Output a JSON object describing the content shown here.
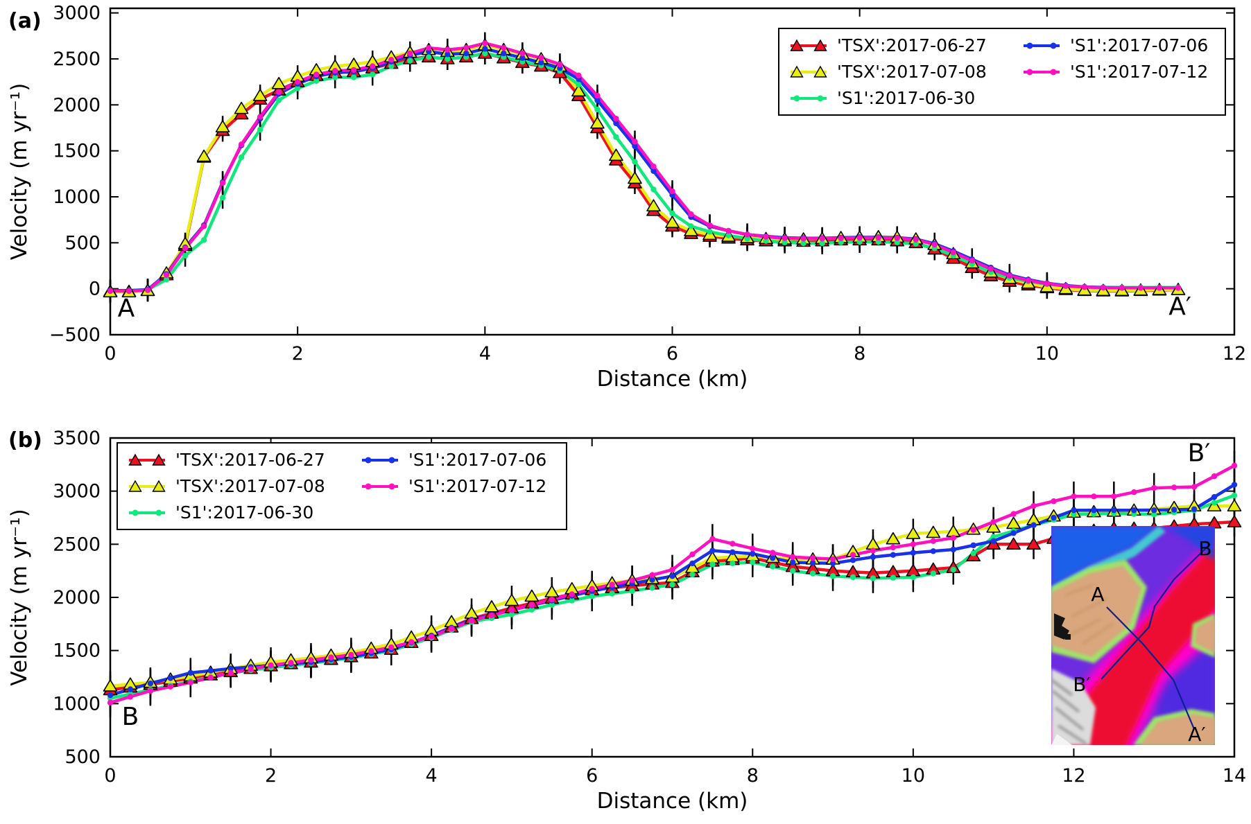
{
  "figure": {
    "panel_a_label": "(a)",
    "panel_b_label": "(b)"
  },
  "chart_data": [
    {
      "type": "line",
      "panel": "a",
      "panel_label": "(a)",
      "xlabel": "Distance (km)",
      "ylabel": "Velocity (m yr⁻¹)",
      "xlim": [
        0,
        12
      ],
      "ylim": [
        -500,
        3000
      ],
      "x_ticks": [
        0,
        2,
        4,
        6,
        8,
        10,
        12
      ],
      "y_tick_values": [
        3000,
        2500,
        2000,
        1500,
        1000,
        500,
        0,
        -500
      ],
      "y_tick_labels": [
        "3000",
        "2500",
        "2000",
        "1500",
        "1000",
        "500",
        "0",
        "−500"
      ],
      "x_start": 0,
      "x_step": 0.2,
      "grid": false,
      "legend_position": "upper right",
      "legend_columns": [
        [
          0,
          1,
          2
        ],
        [
          3,
          4
        ]
      ],
      "error_bars": {
        "every": 2,
        "size": 120,
        "from": 0,
        "to": 10.2
      },
      "annotations": [
        {
          "text": "A",
          "x": 0.17,
          "y": -300
        },
        {
          "text": "A′",
          "x": 11.42,
          "y": -280
        }
      ],
      "series": [
        {
          "name": "'TSX':2017-06-27",
          "satellite": "TSX",
          "date": "2017-06-27",
          "color": "#ee1122",
          "marker": "triangle",
          "values": [
            -30,
            -30,
            -20,
            150,
            470,
            1430,
            1720,
            1900,
            2060,
            2160,
            2250,
            2320,
            2350,
            2360,
            2400,
            2450,
            2500,
            2520,
            2500,
            2520,
            2560,
            2510,
            2460,
            2420,
            2350,
            2100,
            1750,
            1400,
            1150,
            850,
            680,
            600,
            570,
            550,
            530,
            520,
            520,
            515,
            520,
            530,
            530,
            530,
            520,
            500,
            430,
            330,
            230,
            140,
            80,
            40,
            10,
            -10,
            -20,
            -25,
            -25,
            -20,
            -15,
            -10
          ]
        },
        {
          "name": "'TSX':2017-07-08",
          "satellite": "TSX",
          "date": "2017-07-08",
          "color": "#e8ee12",
          "marker": "triangle",
          "values": [
            -35,
            -35,
            -20,
            170,
            490,
            1440,
            1760,
            1960,
            2100,
            2230,
            2310,
            2380,
            2420,
            2440,
            2470,
            2520,
            2570,
            2600,
            2580,
            2600,
            2650,
            2600,
            2550,
            2500,
            2420,
            2150,
            1800,
            1450,
            1200,
            900,
            720,
            630,
            590,
            570,
            555,
            545,
            540,
            540,
            545,
            555,
            560,
            565,
            560,
            540,
            480,
            380,
            280,
            180,
            110,
            60,
            20,
            0,
            -15,
            -20,
            -20,
            -15,
            -10,
            -10
          ]
        },
        {
          "name": "'S1':2017-06-30",
          "satellite": "S1",
          "date": "2017-06-30",
          "color": "#11e87c",
          "marker": "circle",
          "values": [
            -20,
            -20,
            -10,
            100,
            360,
            530,
            990,
            1430,
            1730,
            2050,
            2180,
            2260,
            2300,
            2300,
            2330,
            2420,
            2480,
            2520,
            2500,
            2520,
            2560,
            2520,
            2470,
            2430,
            2370,
            2220,
            1950,
            1650,
            1380,
            1080,
            820,
            680,
            620,
            580,
            545,
            520,
            505,
            495,
            495,
            505,
            510,
            510,
            505,
            490,
            440,
            360,
            270,
            180,
            120,
            80,
            50,
            30,
            20,
            15,
            15,
            15,
            15,
            15
          ]
        },
        {
          "name": "'S1':2017-07-06",
          "satellite": "S1",
          "date": "2017-07-06",
          "color": "#1732e8",
          "marker": "circle",
          "values": [
            -20,
            -20,
            -10,
            160,
            450,
            690,
            1160,
            1560,
            1850,
            2120,
            2230,
            2310,
            2350,
            2360,
            2400,
            2470,
            2540,
            2580,
            2550,
            2560,
            2610,
            2560,
            2510,
            2460,
            2400,
            2280,
            2050,
            1800,
            1550,
            1280,
            1020,
            780,
            680,
            630,
            590,
            570,
            555,
            550,
            550,
            555,
            560,
            560,
            555,
            540,
            490,
            410,
            320,
            230,
            150,
            100,
            60,
            35,
            20,
            15,
            10,
            10,
            10,
            10
          ]
        },
        {
          "name": "'S1':2017-07-12",
          "satellite": "S1",
          "date": "2017-07-12",
          "color": "#ff10c0",
          "marker": "circle",
          "values": [
            -25,
            -25,
            -15,
            150,
            440,
            680,
            1150,
            1570,
            1870,
            2140,
            2250,
            2330,
            2370,
            2380,
            2420,
            2490,
            2560,
            2620,
            2600,
            2620,
            2670,
            2620,
            2560,
            2510,
            2440,
            2320,
            2100,
            1850,
            1600,
            1330,
            1060,
            810,
            690,
            630,
            590,
            565,
            550,
            545,
            545,
            550,
            555,
            555,
            550,
            535,
            480,
            395,
            305,
            215,
            140,
            90,
            55,
            30,
            18,
            12,
            10,
            10,
            10,
            10
          ]
        }
      ]
    },
    {
      "type": "line",
      "panel": "b",
      "panel_label": "(b)",
      "xlabel": "Distance (km)",
      "ylabel": "Velocity (m yr⁻¹)",
      "xlim": [
        0,
        14
      ],
      "ylim": [
        500,
        3500
      ],
      "x_ticks": [
        0,
        2,
        4,
        6,
        8,
        10,
        12,
        14
      ],
      "y_tick_values": [
        3500,
        3000,
        2500,
        2000,
        1500,
        1000,
        500
      ],
      "y_tick_labels": [
        "3500",
        "3000",
        "2500",
        "2000",
        "1500",
        "1000",
        "500"
      ],
      "x_start": 0,
      "x_step": 0.25,
      "grid": false,
      "legend_position": "upper left",
      "legend_columns": [
        [
          0,
          1,
          2
        ],
        [
          3,
          4
        ]
      ],
      "error_bars": {
        "every": 2,
        "size": 140,
        "from": 0,
        "to": 14
      },
      "annotations": [
        {
          "text": "B",
          "x": 0.25,
          "y": 800
        },
        {
          "text": "B′",
          "x": 13.56,
          "y": 3280
        }
      ],
      "series": [
        {
          "name": "'TSX':2017-06-27",
          "satellite": "TSX",
          "date": "2017-06-27",
          "color": "#ee1122",
          "marker": "triangle",
          "values": [
            1130,
            1155,
            1180,
            1210,
            1240,
            1270,
            1300,
            1330,
            1355,
            1375,
            1390,
            1415,
            1440,
            1475,
            1510,
            1575,
            1640,
            1720,
            1800,
            1850,
            1900,
            1945,
            1990,
            2030,
            2070,
            2090,
            2110,
            2125,
            2140,
            2240,
            2340,
            2355,
            2370,
            2330,
            2290,
            2270,
            2250,
            2240,
            2230,
            2240,
            2250,
            2265,
            2280,
            2390,
            2500,
            2500,
            2500,
            2555,
            2610,
            2630,
            2650,
            2650,
            2650,
            2670,
            2690,
            2700,
            2710
          ]
        },
        {
          "name": "'TSX':2017-07-08",
          "satellite": "TSX",
          "date": "2017-07-08",
          "color": "#e8ee12",
          "marker": "triangle",
          "values": [
            1165,
            1183,
            1200,
            1230,
            1260,
            1295,
            1330,
            1360,
            1390,
            1410,
            1430,
            1455,
            1480,
            1520,
            1560,
            1625,
            1690,
            1770,
            1850,
            1910,
            1970,
            2010,
            2050,
            2080,
            2110,
            2135,
            2160,
            2175,
            2190,
            2280,
            2370,
            2380,
            2390,
            2375,
            2360,
            2360,
            2360,
            2430,
            2500,
            2550,
            2600,
            2610,
            2620,
            2640,
            2660,
            2695,
            2730,
            2765,
            2800,
            2805,
            2810,
            2820,
            2830,
            2845,
            2860,
            2860,
            2860
          ]
        },
        {
          "name": "'S1':2017-06-30",
          "satellite": "S1",
          "date": "2017-06-30",
          "color": "#11e87c",
          "marker": "circle",
          "values": [
            1050,
            1090,
            1130,
            1170,
            1210,
            1250,
            1290,
            1315,
            1340,
            1360,
            1380,
            1405,
            1430,
            1465,
            1500,
            1560,
            1620,
            1695,
            1770,
            1805,
            1840,
            1885,
            1930,
            1970,
            2010,
            2035,
            2060,
            2090,
            2120,
            2215,
            2310,
            2320,
            2330,
            2290,
            2250,
            2225,
            2200,
            2190,
            2180,
            2185,
            2190,
            2225,
            2260,
            2415,
            2570,
            2625,
            2680,
            2730,
            2780,
            2785,
            2790,
            2785,
            2780,
            2800,
            2820,
            2890,
            2960
          ]
        },
        {
          "name": "'S1':2017-07-06",
          "satellite": "S1",
          "date": "2017-07-06",
          "color": "#1732e8",
          "marker": "circle",
          "values": [
            1080,
            1135,
            1190,
            1240,
            1290,
            1310,
            1330,
            1345,
            1360,
            1375,
            1390,
            1415,
            1440,
            1475,
            1510,
            1575,
            1640,
            1715,
            1790,
            1835,
            1880,
            1925,
            1970,
            2015,
            2060,
            2095,
            2130,
            2165,
            2200,
            2320,
            2440,
            2425,
            2410,
            2370,
            2330,
            2325,
            2320,
            2350,
            2380,
            2400,
            2420,
            2435,
            2450,
            2490,
            2530,
            2605,
            2680,
            2750,
            2820,
            2820,
            2820,
            2820,
            2820,
            2825,
            2830,
            2945,
            3060
          ]
        },
        {
          "name": "'S1':2017-07-12",
          "satellite": "S1",
          "date": "2017-07-12",
          "color": "#ff10c0",
          "marker": "circle",
          "values": [
            1010,
            1065,
            1120,
            1160,
            1200,
            1245,
            1290,
            1325,
            1360,
            1385,
            1410,
            1435,
            1460,
            1495,
            1530,
            1580,
            1630,
            1705,
            1780,
            1830,
            1880,
            1930,
            1980,
            2030,
            2080,
            2120,
            2160,
            2210,
            2260,
            2405,
            2550,
            2505,
            2460,
            2420,
            2380,
            2370,
            2360,
            2400,
            2440,
            2470,
            2500,
            2530,
            2560,
            2635,
            2710,
            2785,
            2860,
            2905,
            2950,
            2950,
            2950,
            2990,
            3030,
            3035,
            3040,
            3140,
            3240
          ]
        }
      ]
    }
  ],
  "inset": {
    "labels": {
      "a": "A",
      "b": "B",
      "b_prime": "B′",
      "a_prime": "A′"
    }
  }
}
